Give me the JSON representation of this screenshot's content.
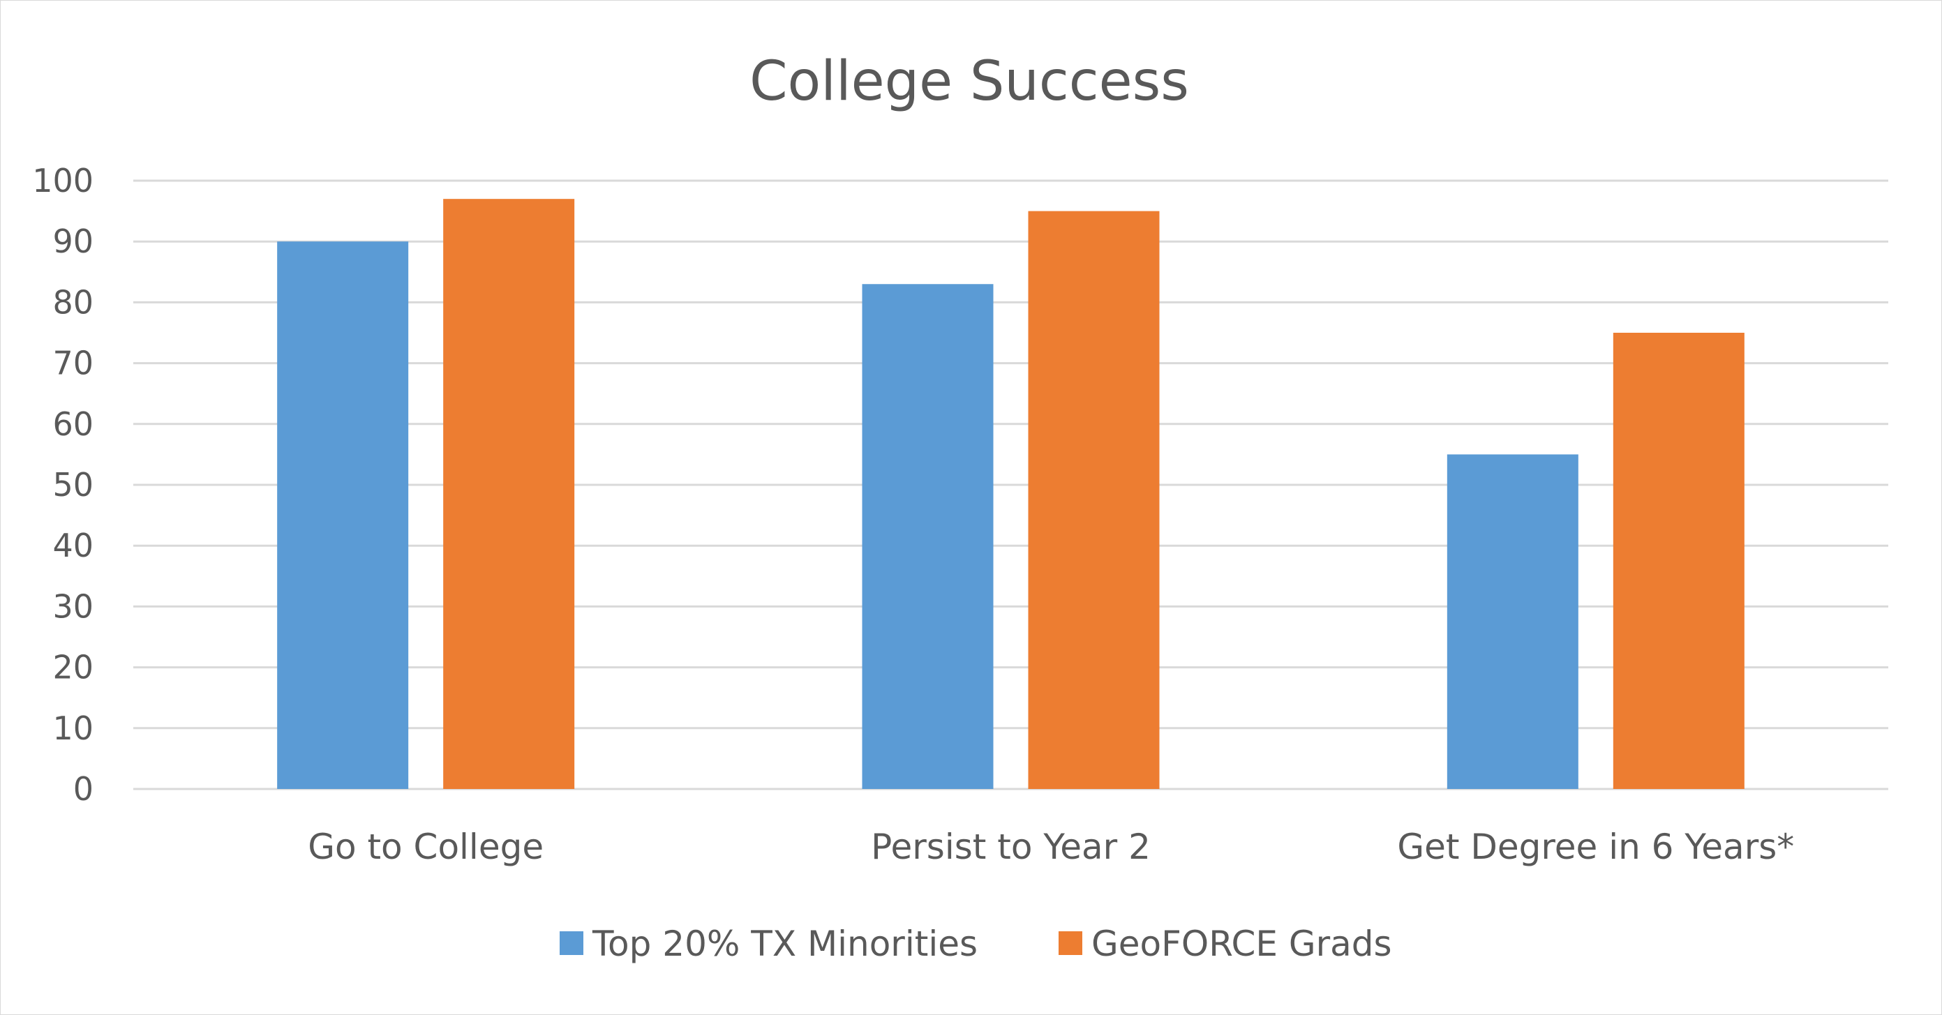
{
  "chart_data": {
    "type": "bar",
    "title": "College Success",
    "xlabel": "",
    "ylabel": "",
    "ylim": [
      0,
      100
    ],
    "yticks": [
      0,
      10,
      20,
      30,
      40,
      50,
      60,
      70,
      80,
      90,
      100
    ],
    "grid": true,
    "legend_position": "bottom",
    "categories": [
      "Go to College",
      "Persist to Year 2",
      "Get Degree in 6 Years*"
    ],
    "series": [
      {
        "name": "Top 20% TX Minorities",
        "color": "#5B9BD5",
        "values": [
          90,
          83,
          55
        ]
      },
      {
        "name": "GeoFORCE Grads",
        "color": "#ED7D31",
        "values": [
          97,
          95,
          75
        ]
      }
    ]
  }
}
